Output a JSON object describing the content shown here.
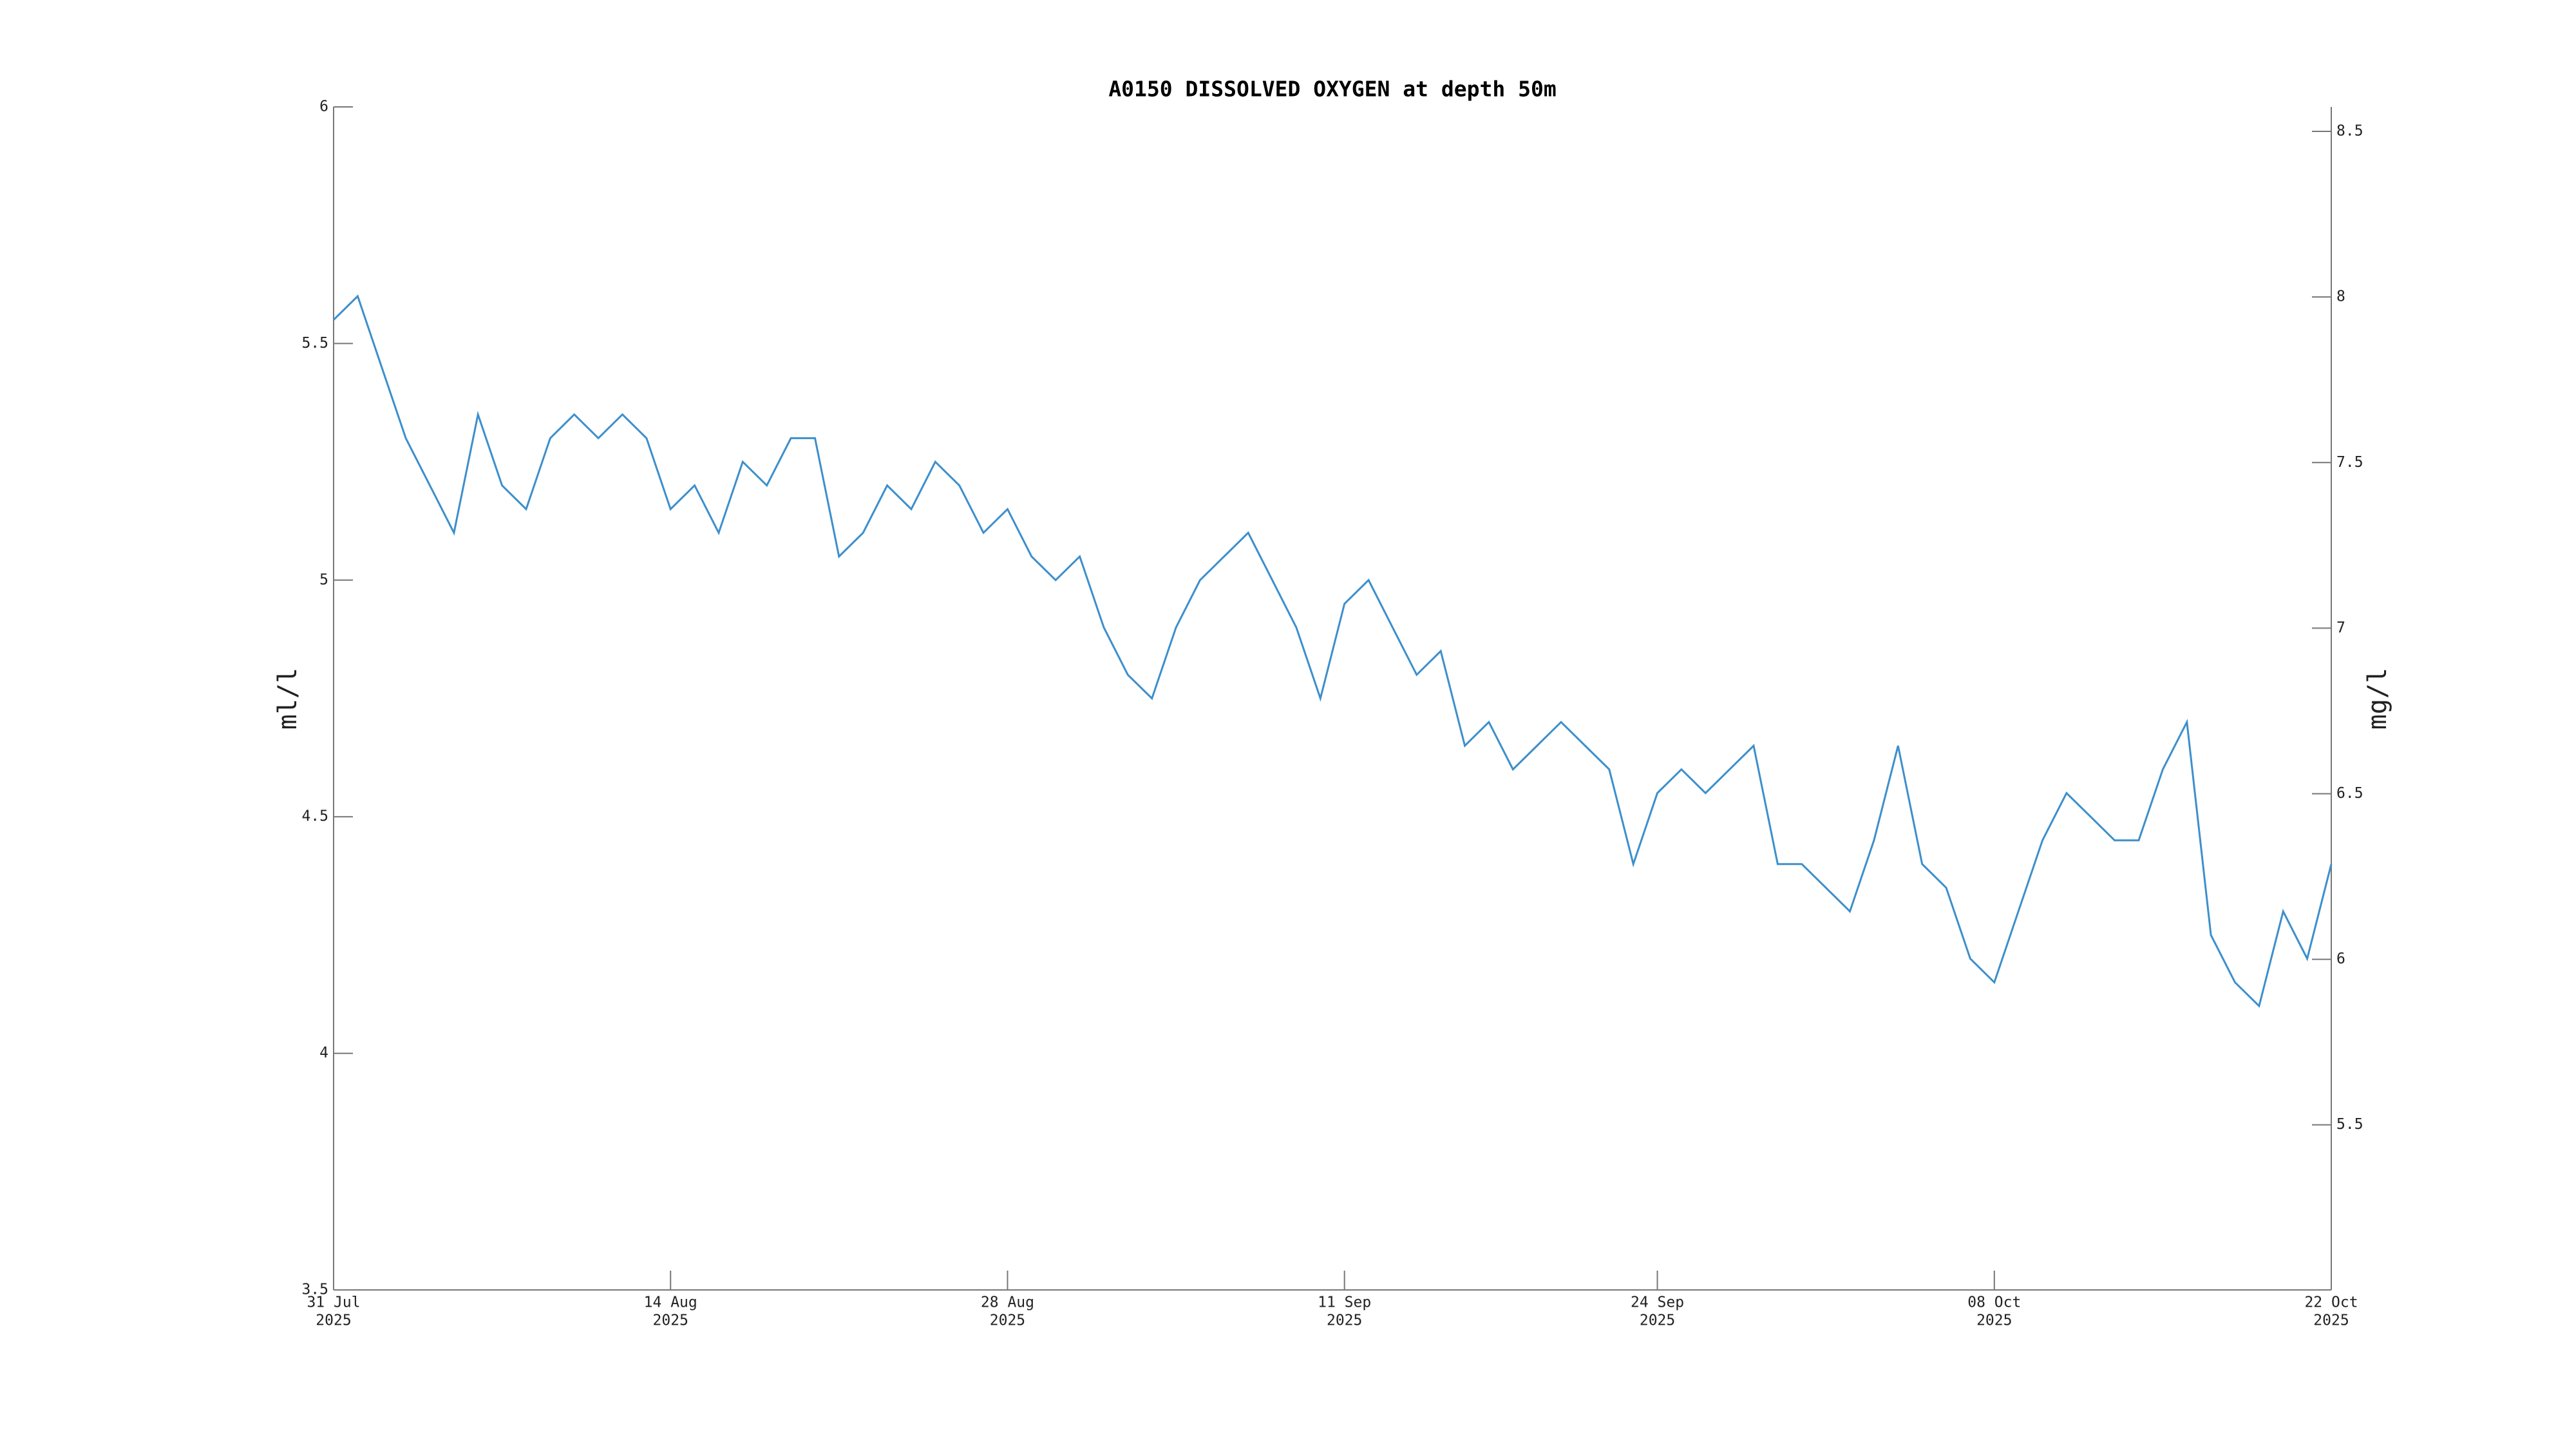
{
  "chart_data": {
    "type": "line",
    "title": "A0150 DISSOLVED OXYGEN at depth 50m",
    "ylabel": "ml/l",
    "y2label": "mg/l",
    "x": [
      "2025-07-31",
      "2025-08-01",
      "2025-08-02",
      "2025-08-03",
      "2025-08-04",
      "2025-08-05",
      "2025-08-06",
      "2025-08-07",
      "2025-08-08",
      "2025-08-09",
      "2025-08-10",
      "2025-08-11",
      "2025-08-12",
      "2025-08-13",
      "2025-08-14",
      "2025-08-15",
      "2025-08-16",
      "2025-08-17",
      "2025-08-18",
      "2025-08-19",
      "2025-08-20",
      "2025-08-21",
      "2025-08-22",
      "2025-08-23",
      "2025-08-24",
      "2025-08-25",
      "2025-08-26",
      "2025-08-27",
      "2025-08-28",
      "2025-08-29",
      "2025-08-30",
      "2025-08-31",
      "2025-09-01",
      "2025-09-02",
      "2025-09-03",
      "2025-09-04",
      "2025-09-05",
      "2025-09-06",
      "2025-09-07",
      "2025-09-08",
      "2025-09-09",
      "2025-09-10",
      "2025-09-11",
      "2025-09-12",
      "2025-09-13",
      "2025-09-14",
      "2025-09-15",
      "2025-09-16",
      "2025-09-17",
      "2025-09-18",
      "2025-09-19",
      "2025-09-20",
      "2025-09-21",
      "2025-09-22",
      "2025-09-23",
      "2025-09-24",
      "2025-09-25",
      "2025-09-26",
      "2025-09-27",
      "2025-09-28",
      "2025-09-29",
      "2025-09-30",
      "2025-10-01",
      "2025-10-02",
      "2025-10-03",
      "2025-10-04",
      "2025-10-05",
      "2025-10-06",
      "2025-10-07",
      "2025-10-08",
      "2025-10-09",
      "2025-10-10",
      "2025-10-11",
      "2025-10-12",
      "2025-10-13",
      "2025-10-14",
      "2025-10-15",
      "2025-10-16",
      "2025-10-17",
      "2025-10-18",
      "2025-10-19",
      "2025-10-20",
      "2025-10-21",
      "2025-10-22"
    ],
    "series": [
      {
        "color": "#3d8fcc",
        "values": [
          5.55,
          5.6,
          5.45,
          5.3,
          5.2,
          5.1,
          5.35,
          5.2,
          5.15,
          5.3,
          5.35,
          5.3,
          5.35,
          5.3,
          5.15,
          5.2,
          5.1,
          5.25,
          5.2,
          5.3,
          5.3,
          5.05,
          5.1,
          5.2,
          5.15,
          5.25,
          5.2,
          5.1,
          5.15,
          5.05,
          5.0,
          5.05,
          4.9,
          4.8,
          4.75,
          4.9,
          5.0,
          5.05,
          5.1,
          5.0,
          4.9,
          4.75,
          4.95,
          5.0,
          4.9,
          4.8,
          4.85,
          4.65,
          4.7,
          4.6,
          4.65,
          4.7,
          4.65,
          4.6,
          4.4,
          4.55,
          4.6,
          4.55,
          4.6,
          4.65,
          4.4,
          4.4,
          4.35,
          4.3,
          4.45,
          4.65,
          4.4,
          4.35,
          4.2,
          4.15,
          4.3,
          4.45,
          4.55,
          4.5,
          4.45,
          4.45,
          4.6,
          4.7,
          4.25,
          4.15,
          4.1,
          4.3,
          4.2,
          4.4
        ]
      }
    ],
    "xlim": [
      "2025-07-31",
      "2025-10-22"
    ],
    "xticks": [
      {
        "value": "2025-07-31",
        "label": [
          "31 Jul",
          "2025"
        ]
      },
      {
        "value": "2025-08-14",
        "label": [
          "14 Aug",
          "2025"
        ]
      },
      {
        "value": "2025-08-28",
        "label": [
          "28 Aug",
          "2025"
        ]
      },
      {
        "value": "2025-09-11",
        "label": [
          "11 Sep",
          "2025"
        ]
      },
      {
        "value": "2025-09-24",
        "label": [
          "24 Sep",
          "2025"
        ]
      },
      {
        "value": "2025-10-08",
        "label": [
          "08 Oct",
          "2025"
        ]
      },
      {
        "value": "2025-10-22",
        "label": [
          "22 Oct",
          "2025"
        ]
      }
    ],
    "ylim": [
      3.5,
      6
    ],
    "yticks": [
      3.5,
      4,
      4.5,
      5,
      5.5,
      6
    ],
    "y2lim": [
      5.0015,
      8.574
    ],
    "y2ticks": [
      5.5,
      6,
      6.5,
      7,
      7.5,
      8,
      8.5
    ]
  }
}
